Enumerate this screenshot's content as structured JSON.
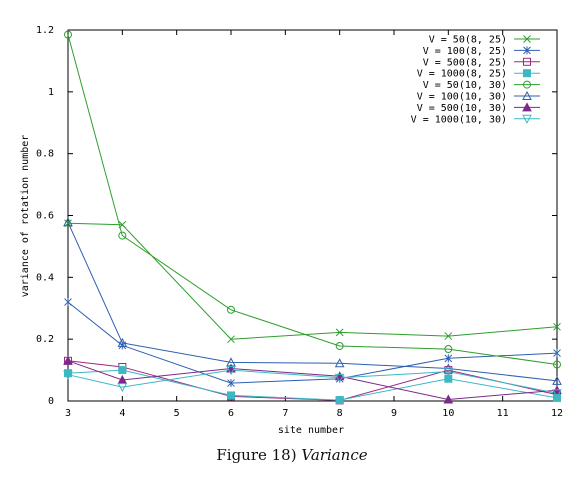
{
  "chart_data": {
    "type": "line",
    "title": "",
    "xlabel": "site number",
    "ylabel": "variance of rotation number",
    "xlim": [
      3,
      12
    ],
    "ylim": [
      0,
      1.2
    ],
    "x": [
      3,
      4,
      6,
      8,
      10,
      12
    ],
    "xticks": [
      "3",
      "4",
      "5",
      "6",
      "7",
      "8",
      "9",
      "10",
      "11",
      "12"
    ],
    "yticks": [
      "0",
      "0.2",
      "0.4",
      "0.6",
      "0.8",
      "1",
      "1.2"
    ],
    "legend_position": "top-right",
    "grid": false,
    "series": [
      {
        "name": "V = 50(8, 25)",
        "values": [
          0.575,
          0.57,
          0.2,
          0.222,
          0.21,
          0.24
        ],
        "color": "#2e9e2e",
        "marker": "x"
      },
      {
        "name": "V = 100(8, 25)",
        "values": [
          0.32,
          0.18,
          0.058,
          0.072,
          0.138,
          0.155
        ],
        "color": "#2f5fb0",
        "marker": "asterisk"
      },
      {
        "name": "V = 500(8, 25)",
        "values": [
          0.13,
          0.11,
          0.015,
          0.002,
          0.1,
          0.02
        ],
        "color": "#a0287e",
        "marker": "square-open"
      },
      {
        "name": "V = 1000(8, 25)",
        "values": [
          0.09,
          0.1,
          0.018,
          0.003,
          0.072,
          0.01
        ],
        "color": "#3cb8c4",
        "marker": "square-filled"
      },
      {
        "name": "V = 50(10, 30)",
        "values": [
          1.185,
          0.535,
          0.295,
          0.178,
          0.168,
          0.118
        ],
        "color": "#2e9e2e",
        "marker": "circle-open"
      },
      {
        "name": "V = 100(10, 30)",
        "values": [
          0.578,
          0.188,
          0.125,
          0.122,
          0.105,
          0.065
        ],
        "color": "#2f5fb0",
        "marker": "triangle-open"
      },
      {
        "name": "V = 500(10, 30)",
        "values": [
          0.13,
          0.068,
          0.105,
          0.08,
          0.005,
          0.035
        ],
        "color": "#7a2a8a",
        "marker": "triangle-filled"
      },
      {
        "name": "V = 1000(10, 30)",
        "values": [
          0.085,
          0.045,
          0.1,
          0.075,
          0.095,
          0.025
        ],
        "color": "#3cb8c4",
        "marker": "triangle-down-open"
      }
    ]
  },
  "caption": {
    "label": "Figure 18)",
    "text": "Variance"
  }
}
